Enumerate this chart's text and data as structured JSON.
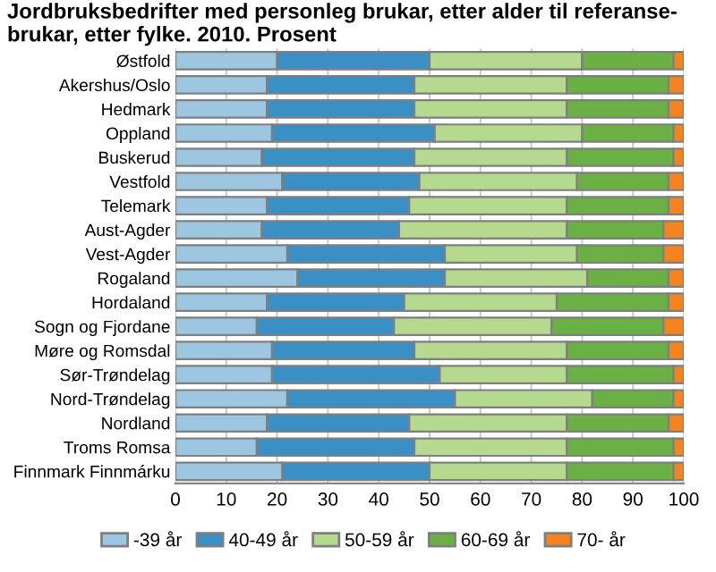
{
  "chart_data": {
    "type": "bar",
    "orientation": "horizontal",
    "stacked": true,
    "title": "Jordbruksbedrifter med personleg brukar, etter alder til referanse-\nbrukar, etter fylke. 2010. Prosent",
    "categories": [
      "Østfold",
      "Akershus/Oslo",
      "Hedmark",
      "Oppland",
      "Buskerud",
      "Vestfold",
      "Telemark",
      "Aust-Agder",
      "Vest-Agder",
      "Rogaland",
      "Hordaland",
      "Sogn og Fjordane",
      "Møre og Romsdal",
      "Sør-Trøndelag",
      "Nord-Trøndelag",
      "Nordland",
      "Troms Romsa",
      "Finnmark Finnmárku"
    ],
    "series": [
      {
        "name": "-39 år",
        "color": "#9dc6e0",
        "values": [
          20,
          18,
          18,
          19,
          17,
          21,
          18,
          17,
          22,
          24,
          18,
          16,
          19,
          19,
          22,
          18,
          16,
          21
        ]
      },
      {
        "name": "40-49 år",
        "color": "#3a8fc4",
        "values": [
          30,
          29,
          29,
          32,
          30,
          27,
          28,
          27,
          31,
          29,
          27,
          27,
          28,
          33,
          33,
          28,
          31,
          29
        ]
      },
      {
        "name": "50-59 år",
        "color": "#b5d98f",
        "values": [
          30,
          30,
          30,
          29,
          30,
          31,
          31,
          33,
          26,
          28,
          30,
          31,
          30,
          25,
          27,
          31,
          30,
          27
        ]
      },
      {
        "name": "60-69 år",
        "color": "#6ab045",
        "values": [
          18,
          20,
          20,
          18,
          21,
          18,
          20,
          19,
          17,
          16,
          22,
          22,
          20,
          21,
          16,
          20,
          21,
          21
        ]
      },
      {
        "name": "70- år",
        "color": "#f5841f",
        "values": [
          2,
          3,
          3,
          2,
          2,
          3,
          3,
          4,
          4,
          3,
          3,
          4,
          3,
          2,
          2,
          3,
          2,
          2
        ]
      }
    ],
    "xlim": [
      0,
      100
    ],
    "xticks": [
      0,
      10,
      20,
      30,
      40,
      50,
      60,
      70,
      80,
      90,
      100
    ],
    "grid": "x",
    "legend": "bottom"
  }
}
